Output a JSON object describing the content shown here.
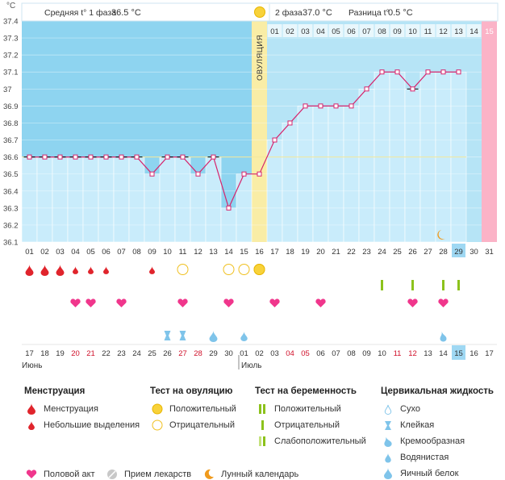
{
  "header": {
    "unit": "°C",
    "phase1_label": "Средняя t° 1 фаза",
    "phase1_value": "36.5 °C",
    "phase2_label": "2 фаза",
    "phase2_value": "37.0 °C",
    "diff_label": "Разница t°",
    "diff_value": "0.5 °C"
  },
  "ovulation_label": "ОВУЛЯЦИЯ",
  "chart_data": {
    "type": "line",
    "title": "",
    "ylabel": "°C",
    "ylim": [
      36.1,
      37.4
    ],
    "y_ticks": [
      "36.1",
      "36.2",
      "36.3",
      "36.4",
      "36.5",
      "36.6",
      "36.7",
      "36.8",
      "36.9",
      "37",
      "37.1",
      "37.2",
      "37.3",
      "37.4"
    ],
    "cycle_days": [
      "01",
      "02",
      "03",
      "04",
      "05",
      "06",
      "07",
      "08",
      "09",
      "10",
      "11",
      "12",
      "13",
      "14",
      "15",
      "16",
      "17",
      "18",
      "19",
      "20",
      "21",
      "22",
      "23",
      "24",
      "25",
      "26",
      "27",
      "28",
      "29",
      "30",
      "31"
    ],
    "temperature": [
      36.6,
      36.6,
      36.6,
      36.6,
      36.6,
      36.6,
      36.6,
      36.6,
      36.5,
      36.6,
      36.6,
      36.5,
      36.6,
      36.3,
      36.5,
      36.5,
      36.7,
      36.8,
      36.9,
      36.9,
      36.9,
      36.9,
      37.0,
      37.1,
      37.1,
      37.0,
      37.1,
      37.1,
      37.1
    ],
    "coverline": 36.6,
    "ovulation_day": "16",
    "phase2_days": [
      "01",
      "02",
      "03",
      "04",
      "05",
      "06",
      "07",
      "08",
      "09",
      "10",
      "11",
      "12",
      "13",
      "14",
      "15"
    ],
    "calendar_dates": [
      "17",
      "18",
      "19",
      "20",
      "21",
      "22",
      "23",
      "24",
      "25",
      "26",
      "27",
      "28",
      "29",
      "30",
      "01",
      "02",
      "03",
      "04",
      "05",
      "06",
      "07",
      "08",
      "09",
      "10",
      "11",
      "12",
      "13",
      "14",
      "15",
      "16",
      "17"
    ],
    "months": [
      "Июнь",
      "Июль"
    ],
    "today_cycle_day": "29",
    "today_date": "15"
  },
  "legend": {
    "menstruation": {
      "title": "Менструация",
      "items": [
        "Менструация",
        "Небольшие выделения"
      ]
    },
    "ovulation_test": {
      "title": "Тест на овуляцию",
      "items": [
        "Положительный",
        "Отрицательный"
      ]
    },
    "pregnancy_test": {
      "title": "Тест на беременность",
      "items": [
        "Положительный",
        "Отрицательный",
        "Слабоположительный"
      ]
    },
    "cervical": {
      "title": "Цервикальная жидкость",
      "items": [
        "Сухо",
        "Клейкая",
        "Кремообразная",
        "Водянистая",
        "Яичный белок"
      ]
    },
    "bottom": [
      "Половой акт",
      "Прием лекарств",
      "Лунный календарь"
    ]
  },
  "colors": {
    "phase1_bg": "#8ed4f0",
    "phase2_bg": "#b6e4f6",
    "column_fill": "#c9ecfb",
    "ovulation": "#f9eda6",
    "line": "#d6246c",
    "future": "#fbb3c7",
    "period": "#e0242c",
    "heart": "#f0368c",
    "test_green": "#8cc21c",
    "cervical": "#7fc4ea",
    "today": "#9fd8f3"
  }
}
